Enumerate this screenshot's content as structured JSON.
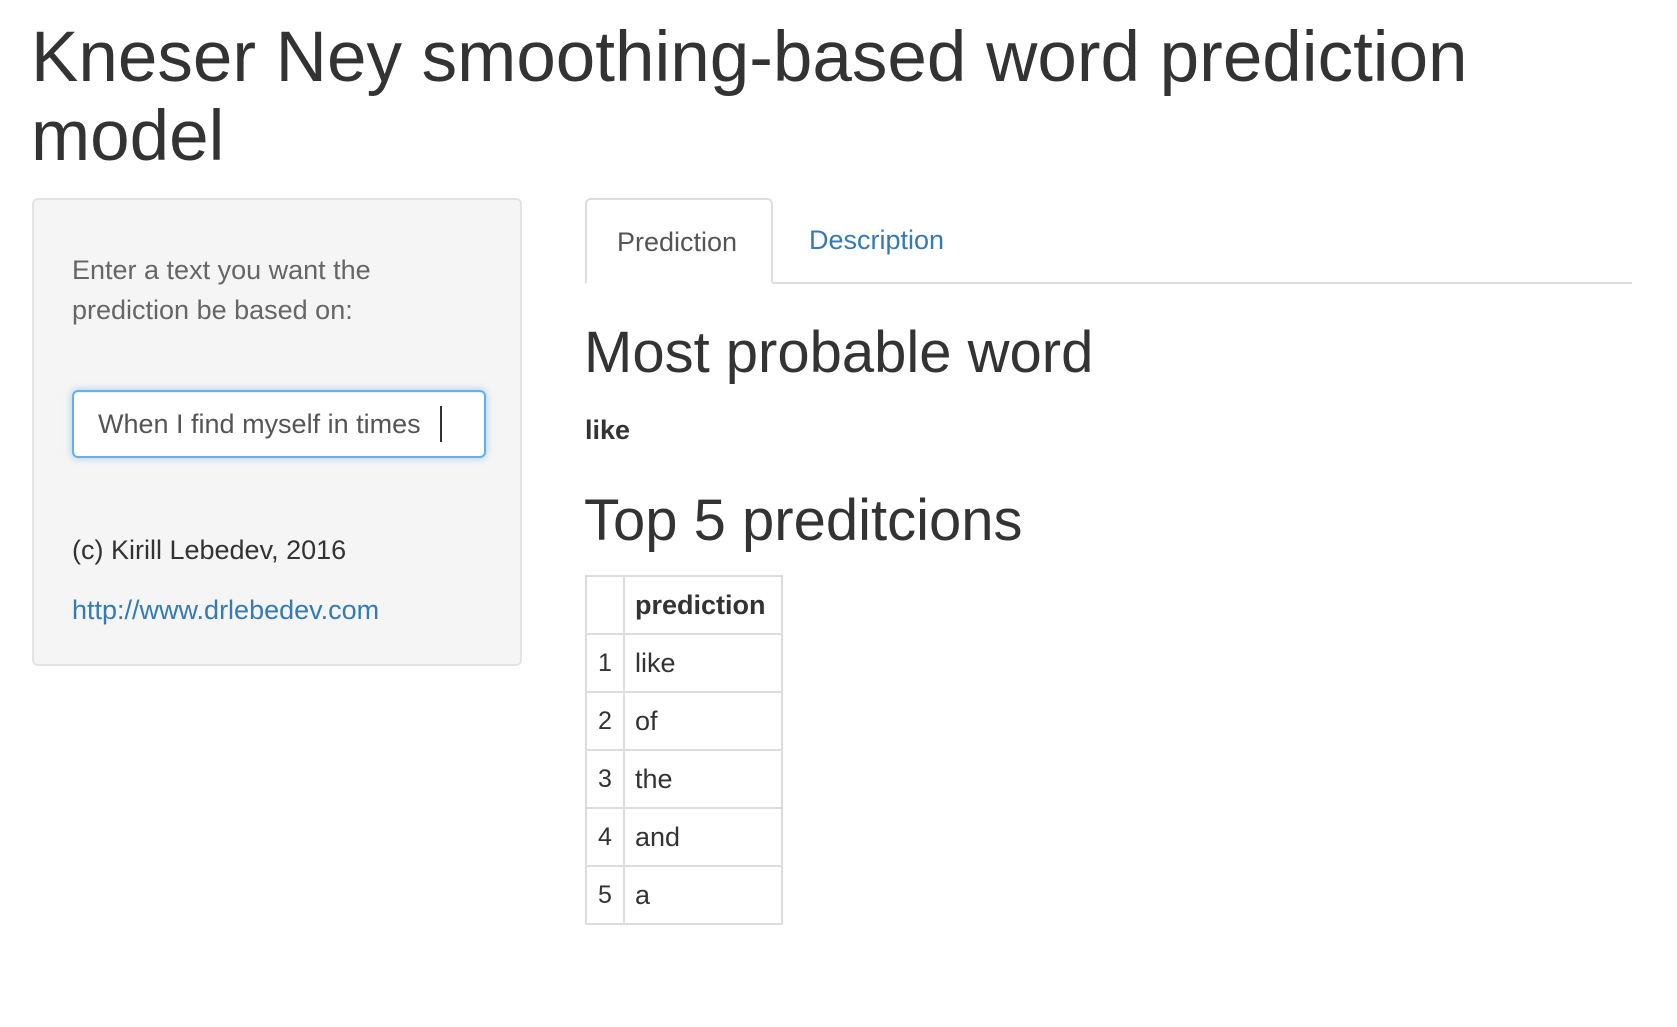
{
  "title": "Kneser Ney smoothing-based word prediction model",
  "sidebar": {
    "input_label": "Enter a text you want the prediction be based on:",
    "input_value": "When I find myself in times",
    "copyright": "(c) Kirill Lebedev, 2016",
    "link_text": "http://www.drlebedev.com"
  },
  "tabs": [
    {
      "label": "Prediction",
      "active": true
    },
    {
      "label": "Description",
      "active": false
    }
  ],
  "main": {
    "most_probable_heading": "Most probable word",
    "most_probable_word": "like",
    "top5_heading": "Top 5 preditcions",
    "table": {
      "header": "prediction",
      "rows": [
        {
          "index": "1",
          "word": "like"
        },
        {
          "index": "2",
          "word": "of"
        },
        {
          "index": "3",
          "word": "the"
        },
        {
          "index": "4",
          "word": "and"
        },
        {
          "index": "5",
          "word": "a"
        }
      ]
    }
  }
}
